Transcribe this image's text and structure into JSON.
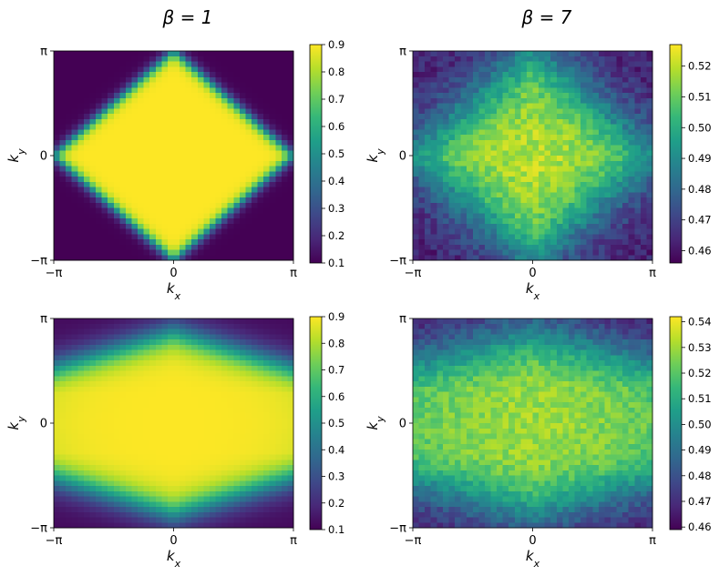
{
  "figure": {
    "column_titles": [
      "β = 1",
      "β = 7"
    ]
  },
  "colormap": {
    "name": "viridis",
    "stops": [
      "#440154",
      "#482878",
      "#3e4989",
      "#31688e",
      "#26828e",
      "#1f9e89",
      "#35b779",
      "#6ece58",
      "#b5de2b",
      "#fde725"
    ]
  },
  "chart_data": [
    {
      "type": "heatmap",
      "panel": "top-left",
      "title": "β = 1",
      "xlabel": "k_x",
      "ylabel": "k_y",
      "x_ticks": [
        "−π",
        "0",
        "π"
      ],
      "y_ticks": [
        "π",
        "0",
        "−π"
      ],
      "grid_size": [
        40,
        40
      ],
      "shape": "diamond",
      "pattern": {
        "inside": 0.9,
        "outside": 0.1,
        "boundary_width": 0.04,
        "anisotropy": 1.0,
        "noise": 0.0,
        "ky_saturation": 0
      },
      "colorbar": {
        "min": 0.1,
        "max": 0.9,
        "ticks": [
          "0.9",
          "0.8",
          "0.7",
          "0.6",
          "0.5",
          "0.4",
          "0.3",
          "0.2",
          "0.1"
        ]
      }
    },
    {
      "type": "heatmap",
      "panel": "top-right",
      "title": "β = 7",
      "xlabel": "k_x",
      "ylabel": "k_y",
      "x_ticks": [
        "−π",
        "0",
        "π"
      ],
      "y_ticks": [
        "π",
        "0",
        "−π"
      ],
      "grid_size": [
        40,
        40
      ],
      "shape": "diamond",
      "pattern": {
        "inside": 0.52,
        "outside": 0.462,
        "boundary_width": 0.22,
        "anisotropy": 1.0,
        "noise": 0.006,
        "ky_saturation": 0
      },
      "colorbar": {
        "min": 0.456,
        "max": 0.527,
        "ticks": [
          "0.52",
          "0.51",
          "0.50",
          "0.49",
          "0.48",
          "0.47",
          "0.46"
        ]
      }
    },
    {
      "type": "heatmap",
      "panel": "bottom-left",
      "title": "",
      "xlabel": "k_x",
      "ylabel": "k_y",
      "x_ticks": [
        "−π",
        "0",
        "π"
      ],
      "y_ticks": [
        "π",
        "0",
        "−π"
      ],
      "grid_size": [
        40,
        40
      ],
      "shape": "horizontal-diamond-band",
      "pattern": {
        "inside": 0.9,
        "outside": 0.12,
        "boundary_width": 0.14,
        "anisotropy": 0.55,
        "noise": 0.0,
        "ky_saturation": 0.27
      },
      "colorbar": {
        "min": 0.1,
        "max": 0.9,
        "ticks": [
          "0.9",
          "0.8",
          "0.7",
          "0.6",
          "0.5",
          "0.4",
          "0.3",
          "0.2",
          "0.1"
        ]
      }
    },
    {
      "type": "heatmap",
      "panel": "bottom-right",
      "title": "",
      "xlabel": "k_x",
      "ylabel": "k_y",
      "x_ticks": [
        "−π",
        "0",
        "π"
      ],
      "y_ticks": [
        "π",
        "0",
        "−π"
      ],
      "grid_size": [
        40,
        40
      ],
      "shape": "horizontal-diamond-band",
      "pattern": {
        "inside": 0.532,
        "outside": 0.462,
        "boundary_width": 0.3,
        "anisotropy": 0.5,
        "noise": 0.006,
        "ky_saturation": 0.3
      },
      "colorbar": {
        "min": 0.459,
        "max": 0.542,
        "ticks": [
          "0.54",
          "0.53",
          "0.52",
          "0.51",
          "0.50",
          "0.49",
          "0.48",
          "0.47",
          "0.46"
        ]
      }
    }
  ]
}
